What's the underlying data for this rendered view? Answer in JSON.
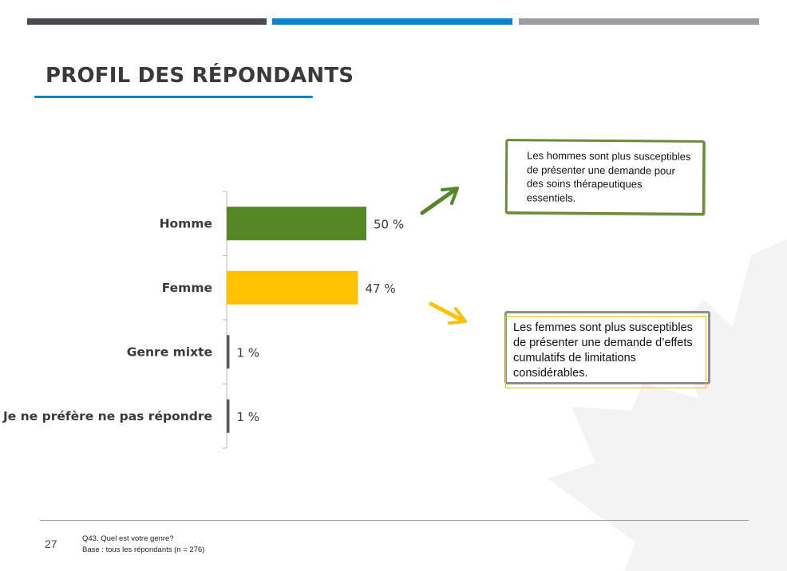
{
  "colors": {
    "bar_dark": "#454b51",
    "bar_blue": "#0a85c9",
    "bar_gray": "#9a9ea3",
    "green": "#568727",
    "yellow": "#fec200",
    "axis": "#b8b8b8",
    "leaf": "#f3f3f3"
  },
  "title": "PROFIL DES RÉPONDANTS",
  "chart_data": {
    "type": "bar",
    "orientation": "horizontal",
    "categories": [
      "Homme",
      "Femme",
      "Genre mixte",
      "Je ne préfère ne pas répondre"
    ],
    "values": [
      50,
      47,
      1,
      1
    ],
    "value_labels": [
      "50 %",
      "47 %",
      "1 %",
      "1 %"
    ],
    "bar_colors": [
      "#568727",
      "#fec200",
      "#595959",
      "#595959"
    ],
    "xlim": [
      0,
      100
    ],
    "grid": false,
    "legend": "none"
  },
  "callouts": {
    "men": "Les hommes sont plus susceptibles de présenter une demande pour des soins thérapeutiques essentiels.",
    "women": "Les femmes sont plus susceptibles de présenter une demande d’effets cumulatifs de limitations considérables."
  },
  "footer": {
    "page_number": "27",
    "question": "Q43. Quel est votre genre?",
    "base": "Base : tous les répondants (n = 276)"
  }
}
